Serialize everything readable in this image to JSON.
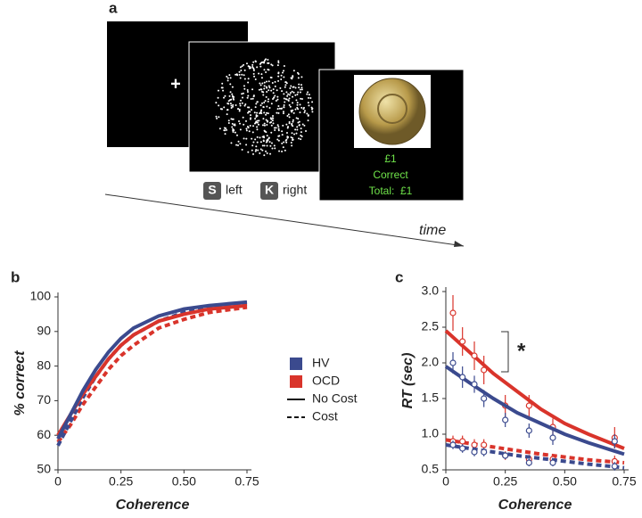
{
  "panel_a": {
    "label": "a",
    "plus": "+",
    "keys": [
      {
        "key": "S",
        "label": "left"
      },
      {
        "key": "K",
        "label": "right"
      }
    ],
    "feedback": [
      "£1",
      "Correct",
      "Total:  £1"
    ],
    "time": "time"
  },
  "legend": {
    "items": [
      {
        "label": "HV",
        "color": "#3b4a8e"
      },
      {
        "label": "OCD",
        "color": "#d9342b"
      },
      {
        "label": "No Cost",
        "dashed": false
      },
      {
        "label": "Cost",
        "dashed": true
      }
    ]
  },
  "chart_data": [
    {
      "type": "line",
      "label": "b",
      "xlabel": "Coherence",
      "ylabel": "% correct",
      "xlim": [
        0,
        0.75
      ],
      "ylim": [
        50,
        100
      ],
      "xticks": [
        0,
        0.25,
        {
          "value": 0.5,
          "label": "0.50"
        },
        0.75
      ],
      "yticks": [
        50,
        60,
        70,
        80,
        90,
        100
      ],
      "x": [
        0,
        0.05,
        0.1,
        0.15,
        0.2,
        0.25,
        0.3,
        0.4,
        0.5,
        0.6,
        0.75
      ],
      "series": [
        {
          "color": "#d9342b",
          "dashed": true,
          "values": [
            58,
            63,
            69,
            74,
            79,
            83,
            86,
            91,
            93.5,
            95.5,
            97
          ]
        },
        {
          "color": "#3b4a8e",
          "dashed": true,
          "values": [
            57,
            64,
            71,
            77,
            82,
            86,
            89,
            93,
            95.5,
            97,
            98
          ]
        },
        {
          "color": "#d9342b",
          "dashed": false,
          "values": [
            60,
            66,
            72,
            77,
            82,
            86,
            89,
            93,
            95,
            96.5,
            97.5
          ]
        },
        {
          "color": "#3b4a8e",
          "dashed": false,
          "values": [
            59,
            66,
            73,
            79,
            84,
            88,
            91,
            94.5,
            96.5,
            97.5,
            98.5
          ]
        }
      ]
    },
    {
      "type": "line",
      "label": "c",
      "xlabel": "Coherence",
      "ylabel": "RT (sec)",
      "xlim": [
        0,
        0.75
      ],
      "ylim": [
        0.5,
        3.0
      ],
      "xticks": [
        0,
        0.25,
        {
          "value": 0.5,
          "label": "0.50"
        },
        0.75
      ],
      "yticks": [
        0.5,
        {
          "value": 1,
          "label": "1.0"
        },
        1.5,
        {
          "value": 2,
          "label": "2.0"
        },
        2.5,
        {
          "value": 3,
          "label": "3.0"
        }
      ],
      "annotation": "*",
      "x": [
        0,
        0.1,
        0.2,
        0.3,
        0.4,
        0.5,
        0.6,
        0.75
      ],
      "point_x": [
        0.03,
        0.07,
        0.12,
        0.16,
        0.25,
        0.35,
        0.45,
        0.71
      ],
      "series": [
        {
          "color": "#d9342b",
          "dashed": true,
          "values": [
            0.92,
            0.87,
            0.82,
            0.77,
            0.72,
            0.68,
            0.64,
            0.6
          ],
          "points": [
            0.9,
            0.9,
            0.85,
            0.85,
            0.7,
            0.65,
            0.65,
            0.62
          ],
          "errors": [
            0.08,
            0.08,
            0.08,
            0.08,
            0.06,
            0.06,
            0.06,
            0.08
          ]
        },
        {
          "color": "#3b4a8e",
          "dashed": true,
          "values": [
            0.85,
            0.8,
            0.75,
            0.7,
            0.66,
            0.62,
            0.58,
            0.53
          ],
          "points": [
            0.85,
            0.8,
            0.75,
            0.75,
            0.7,
            0.6,
            0.6,
            0.55
          ],
          "errors": [
            0.06,
            0.06,
            0.06,
            0.06,
            0.05,
            0.05,
            0.05,
            0.06
          ]
        },
        {
          "color": "#d9342b",
          "dashed": false,
          "values": [
            2.45,
            2.15,
            1.85,
            1.6,
            1.35,
            1.15,
            1.0,
            0.8
          ],
          "points": [
            2.7,
            2.3,
            2.1,
            1.9,
            1.4,
            1.4,
            1.1,
            0.95
          ],
          "errors": [
            0.25,
            0.2,
            0.2,
            0.2,
            0.15,
            0.15,
            0.12,
            0.15
          ]
        },
        {
          "color": "#3b4a8e",
          "dashed": false,
          "values": [
            1.95,
            1.72,
            1.5,
            1.3,
            1.15,
            1.0,
            0.88,
            0.72
          ],
          "points": [
            2.0,
            1.8,
            1.7,
            1.5,
            1.2,
            1.05,
            0.95,
            0.9
          ],
          "errors": [
            0.15,
            0.15,
            0.12,
            0.12,
            0.1,
            0.1,
            0.1,
            0.1
          ]
        }
      ]
    }
  ]
}
